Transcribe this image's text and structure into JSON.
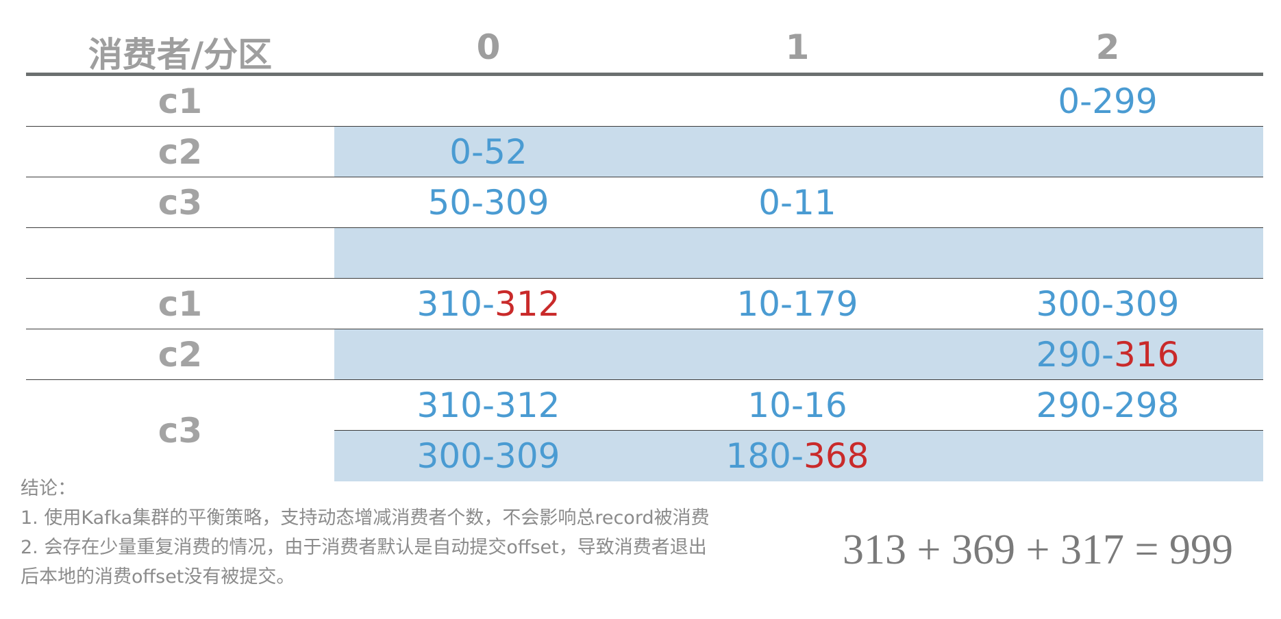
{
  "table": {
    "header": {
      "first": "消费者/分区",
      "p0": "0",
      "p1": "1",
      "p2": "2"
    },
    "rows": [
      {
        "label": "c1",
        "p0": {
          "a": "",
          "b": ""
        },
        "p1": {
          "a": "",
          "b": ""
        },
        "p2": {
          "a": "0-299",
          "b": ""
        }
      },
      {
        "label": "c2",
        "p0": {
          "a": "0-52",
          "b": ""
        },
        "p1": {
          "a": "",
          "b": ""
        },
        "p2": {
          "a": "",
          "b": ""
        }
      },
      {
        "label": "c3",
        "p0": {
          "a": "50-309",
          "b": ""
        },
        "p1": {
          "a": "0-11",
          "b": ""
        },
        "p2": {
          "a": "",
          "b": ""
        }
      },
      {
        "label": "",
        "p0": {
          "a": "",
          "b": ""
        },
        "p1": {
          "a": "",
          "b": ""
        },
        "p2": {
          "a": "",
          "b": ""
        }
      },
      {
        "label": "c1",
        "p0": {
          "a": "310-",
          "b": "312"
        },
        "p1": {
          "a": "10-179",
          "b": ""
        },
        "p2": {
          "a": "300-309",
          "b": ""
        }
      },
      {
        "label": "c2",
        "p0": {
          "a": "",
          "b": ""
        },
        "p1": {
          "a": "",
          "b": ""
        },
        "p2": {
          "a": "290-",
          "b": "316"
        }
      }
    ],
    "merged": {
      "label": "c3",
      "top": {
        "p0": "310-312",
        "p1": "10-16",
        "p2": "290-298"
      },
      "bottom": {
        "p0": "300-309",
        "p1a": "180-",
        "p1b": "368",
        "p2": ""
      }
    },
    "colors": {
      "value_blue": "#4a9bd2",
      "highlight_red": "#c92a2a",
      "band_blue": "#c9dceb",
      "label_gray": "#a3a3a3"
    }
  },
  "conclusion": {
    "title": "结论：",
    "line1": "1. 使用Kafka集群的平衡策略，支持动态增减消费者个数，不会影响总record被消费",
    "line2": "2. 会存在少量重复消费的情况，由于消费者默认是自动提交offset，导致消费者退出",
    "line3": "后本地的消费offset没有被提交。"
  },
  "equation": "313 + 369 + 317 = 999"
}
